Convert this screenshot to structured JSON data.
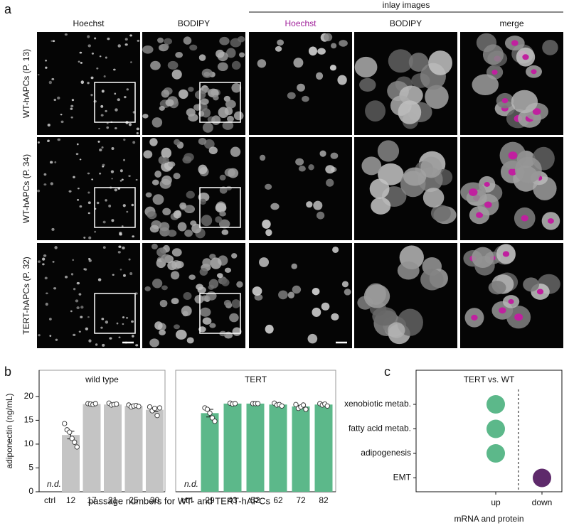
{
  "panel_labels": [
    "a",
    "b",
    "c"
  ],
  "panel_a": {
    "inlay_label": "inlay images",
    "columns": [
      "Hoechst",
      "BODIPY",
      "Hoechst",
      "BODIPY",
      "merge"
    ],
    "rows": [
      "WT-hAPCs (P. 13)",
      "WT-hAPCs (P. 34)",
      "TERT-hAPCs (P. 32)"
    ]
  },
  "chart_data": [
    {
      "type": "bar",
      "title": "wild type",
      "ylabel": "adiponectin (ng/mL)",
      "xlabel": "passage numbers for WT- and TERT-hAPCs",
      "annotation": "n.d.",
      "categories": [
        "ctrl",
        "12",
        "17",
        "21",
        "25",
        "30"
      ],
      "values": [
        null,
        11.9,
        18.4,
        18.3,
        18.0,
        17.2
      ],
      "errors": [
        null,
        0.8,
        0.1,
        0.1,
        0.2,
        0.4
      ],
      "points": [
        null,
        [
          14.3,
          13,
          12.5,
          11.2,
          10.4,
          9.4
        ],
        [
          18.5,
          18.4,
          18.3,
          18.5
        ],
        [
          18.6,
          18.2,
          18.3,
          18.4
        ],
        [
          18.2,
          17.8,
          18.0,
          18.1,
          17.9
        ],
        [
          17.8,
          17.0,
          17.5,
          16.0,
          17.6
        ]
      ],
      "color": "#c4c4c4",
      "ylim": [
        0,
        25.5
      ],
      "yticks": [
        0,
        5,
        10,
        15,
        20
      ]
    },
    {
      "type": "bar",
      "title": "TERT",
      "annotation": "n.d.",
      "categories": [
        "ctrl",
        "29",
        "43",
        "52",
        "62",
        "72",
        "82"
      ],
      "values": [
        null,
        16.5,
        18.5,
        18.5,
        18.3,
        17.9,
        18.3
      ],
      "errors": [
        null,
        0.8,
        0.1,
        0.05,
        0.1,
        0.2,
        0.1
      ],
      "points": [
        null,
        [
          17.6,
          17.3,
          16.5,
          15.5,
          14.8
        ],
        [
          18.6,
          18.4,
          18.5
        ],
        [
          18.5,
          18.5,
          18.5
        ],
        [
          18.6,
          18.2,
          18.3,
          18.0
        ],
        [
          18.3,
          17.5,
          17.8,
          18.2,
          17.3
        ],
        [
          18.5,
          18.2,
          18.4,
          18.0
        ]
      ],
      "color": "#5cb88a",
      "ylim": [
        0,
        25.5
      ]
    },
    {
      "type": "dot",
      "title": "TERT vs. WT",
      "xlabel": "mRNA and protein",
      "categories": [
        "xenobiotic metab.",
        "fatty acid metab.",
        "adipogenesis",
        "EMT"
      ],
      "x_categories": [
        "up",
        "down"
      ],
      "values": [
        "up",
        "up",
        "up",
        "down"
      ],
      "colors": [
        "#5cb88a",
        "#5cb88a",
        "#5cb88a",
        "#5e2a6b"
      ]
    }
  ]
}
